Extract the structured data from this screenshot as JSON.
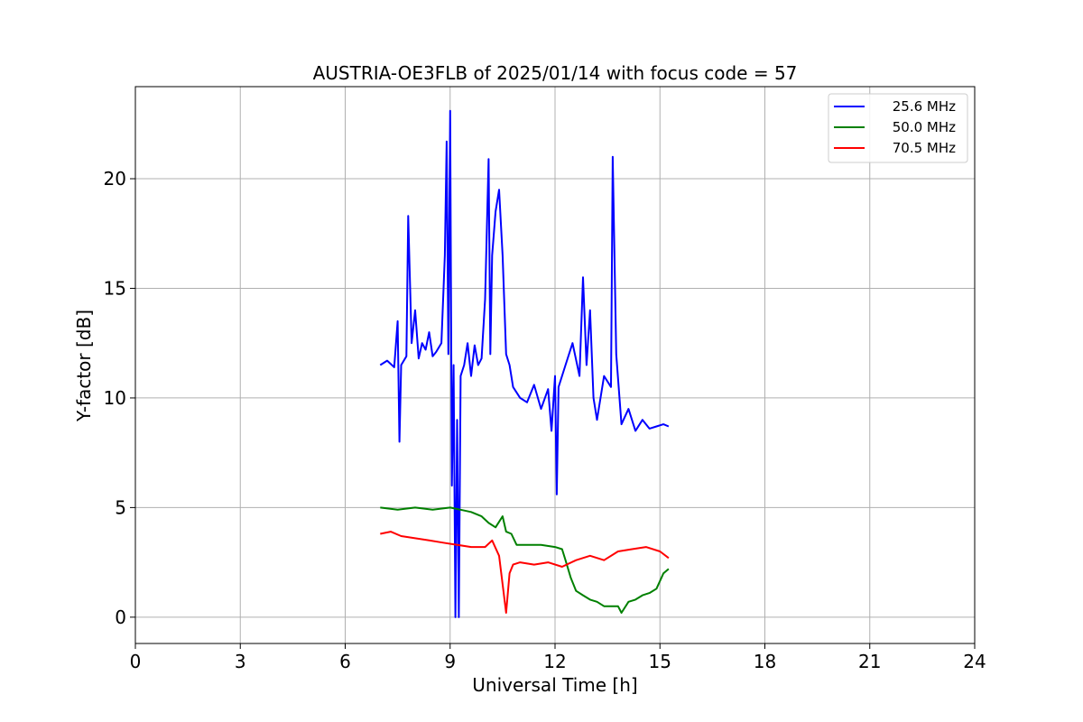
{
  "chart_data": {
    "type": "line",
    "title": "AUSTRIA-OE3FLB of 2025/01/14 with focus code = 57",
    "xlabel": "Universal Time [h]",
    "ylabel": "Y-factor [dB]",
    "xlim": [
      0,
      24
    ],
    "ylim": [
      -1.2,
      24.2
    ],
    "xticks": [
      0,
      3,
      6,
      9,
      12,
      15,
      18,
      21,
      24
    ],
    "yticks": [
      0,
      5,
      10,
      15,
      20
    ],
    "grid": true,
    "legend_position": "upper right",
    "series": [
      {
        "name": "25.6 MHz",
        "color": "#0000ff",
        "x": [
          7.0,
          7.2,
          7.4,
          7.5,
          7.55,
          7.6,
          7.75,
          7.8,
          7.9,
          8.0,
          8.1,
          8.2,
          8.3,
          8.4,
          8.5,
          8.6,
          8.75,
          8.85,
          8.9,
          8.95,
          9.0,
          9.05,
          9.1,
          9.15,
          9.2,
          9.25,
          9.3,
          9.4,
          9.5,
          9.6,
          9.7,
          9.8,
          9.9,
          10.0,
          10.1,
          10.15,
          10.2,
          10.3,
          10.4,
          10.5,
          10.6,
          10.7,
          10.8,
          11.0,
          11.2,
          11.4,
          11.6,
          11.8,
          11.9,
          12.0,
          12.05,
          12.1,
          12.3,
          12.5,
          12.7,
          12.8,
          12.9,
          13.0,
          13.1,
          13.2,
          13.4,
          13.6,
          13.65,
          13.75,
          13.9,
          14.1,
          14.3,
          14.5,
          14.7,
          14.9,
          15.1,
          15.25
        ],
        "y": [
          11.5,
          11.7,
          11.4,
          13.5,
          8.0,
          11.5,
          11.9,
          18.3,
          12.5,
          14.0,
          11.8,
          12.5,
          12.2,
          13.0,
          11.9,
          12.1,
          12.5,
          16.5,
          21.7,
          12.0,
          23.1,
          6.0,
          11.5,
          0.0,
          9.0,
          0.0,
          11.0,
          11.5,
          12.5,
          11.0,
          12.4,
          11.5,
          11.8,
          14.5,
          20.9,
          12.0,
          16.5,
          18.5,
          19.5,
          16.5,
          12.0,
          11.5,
          10.5,
          10.0,
          9.8,
          10.6,
          9.5,
          10.4,
          8.5,
          11.0,
          5.6,
          10.5,
          11.5,
          12.5,
          11.0,
          15.5,
          11.5,
          14.0,
          10.0,
          9.0,
          11.0,
          10.5,
          21.0,
          12.0,
          8.8,
          9.5,
          8.5,
          9.0,
          8.6,
          8.7,
          8.8,
          8.7
        ]
      },
      {
        "name": "50.0 MHz",
        "color": "#008000",
        "x": [
          7.0,
          7.5,
          8.0,
          8.5,
          9.0,
          9.3,
          9.6,
          9.9,
          10.1,
          10.3,
          10.5,
          10.6,
          10.75,
          10.9,
          11.2,
          11.6,
          12.0,
          12.2,
          12.3,
          12.45,
          12.6,
          12.8,
          13.0,
          13.2,
          13.4,
          13.6,
          13.8,
          13.9,
          14.1,
          14.3,
          14.5,
          14.7,
          14.9,
          15.1,
          15.25
        ],
        "y": [
          5.0,
          4.9,
          5.0,
          4.9,
          5.0,
          4.9,
          4.8,
          4.6,
          4.3,
          4.1,
          4.6,
          3.9,
          3.8,
          3.3,
          3.3,
          3.3,
          3.2,
          3.1,
          2.6,
          1.8,
          1.2,
          1.0,
          0.8,
          0.7,
          0.5,
          0.5,
          0.5,
          0.2,
          0.7,
          0.8,
          1.0,
          1.1,
          1.3,
          2.0,
          2.2
        ]
      },
      {
        "name": "70.5 MHz",
        "color": "#ff0000",
        "x": [
          7.0,
          7.3,
          7.6,
          8.0,
          8.4,
          8.8,
          9.2,
          9.6,
          10.0,
          10.2,
          10.4,
          10.5,
          10.6,
          10.7,
          10.8,
          11.0,
          11.4,
          11.8,
          12.2,
          12.6,
          13.0,
          13.4,
          13.8,
          14.2,
          14.6,
          15.0,
          15.25
        ],
        "y": [
          3.8,
          3.9,
          3.7,
          3.6,
          3.5,
          3.4,
          3.3,
          3.2,
          3.2,
          3.5,
          2.8,
          1.5,
          0.2,
          2.0,
          2.4,
          2.5,
          2.4,
          2.5,
          2.3,
          2.6,
          2.8,
          2.6,
          3.0,
          3.1,
          3.2,
          3.0,
          2.7
        ]
      }
    ]
  }
}
